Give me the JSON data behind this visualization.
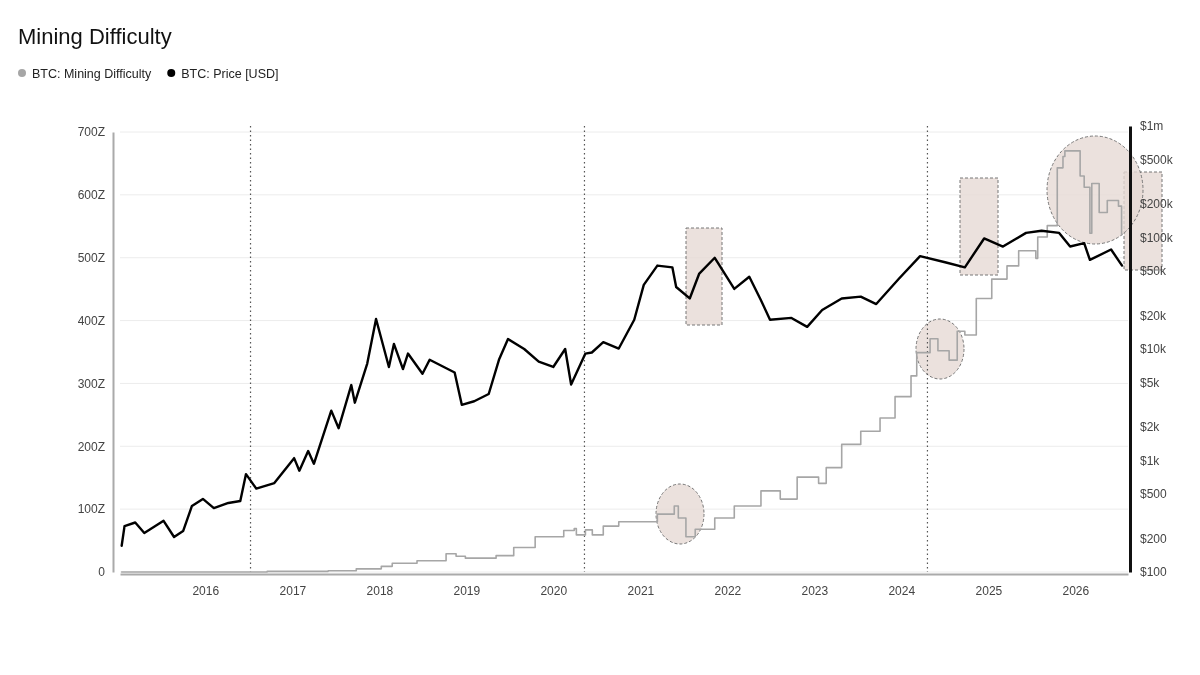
{
  "chart_data": {
    "type": "line",
    "title": "Mining Difficulty",
    "legend": "top left",
    "grid": "y",
    "log": "y2",
    "xlim": [
      "2015-01-08",
      "2026-08-10"
    ],
    "xticks": [
      {
        "value": "2016",
        "label": "2016"
      },
      {
        "value": "2017",
        "label": "2017"
      },
      {
        "value": "2018",
        "label": "2018"
      },
      {
        "value": "2019",
        "label": "2019"
      },
      {
        "value": "2020",
        "label": "2020"
      },
      {
        "value": "2021",
        "label": "2021"
      },
      {
        "value": "2022",
        "label": "2022"
      },
      {
        "value": "2023",
        "label": "2023"
      },
      {
        "value": "2024",
        "label": "2024"
      },
      {
        "value": "2025",
        "label": "2025"
      },
      {
        "value": "2026",
        "label": "2026"
      }
    ],
    "ylim": [
      0,
      700
    ],
    "yticks": [
      0,
      {
        "value": 100,
        "label": "100Z"
      },
      {
        "value": 200,
        "label": "200Z"
      },
      {
        "value": 300,
        "label": "300Z"
      },
      {
        "value": 400,
        "label": "400Z"
      },
      {
        "value": 500,
        "label": "500Z"
      },
      {
        "value": 600,
        "label": "600Z"
      },
      {
        "value": 700,
        "label": "700Z"
      }
    ],
    "y2lim": [
      100,
      1000000
    ],
    "y2ticks": [
      {
        "value": 100,
        "label": "$100"
      },
      {
        "value": 200,
        "label": "$200"
      },
      {
        "value": 500,
        "label": "$500"
      },
      {
        "value": 1000,
        "label": "$1k"
      },
      {
        "value": 2000,
        "label": "$2k"
      },
      {
        "value": 5000,
        "label": "$5k"
      },
      {
        "value": 10000,
        "label": "$10k"
      },
      {
        "value": 20000,
        "label": "$20k"
      },
      {
        "value": 50000,
        "label": "$50k"
      },
      {
        "value": 100000,
        "label": "$100k"
      },
      {
        "value": 200000,
        "label": "$200k"
      },
      {
        "value": 500000,
        "label": "$500k"
      },
      {
        "value": 1000000,
        "label": "$1m"
      }
    ],
    "ref_lines": [
      {
        "axis": "x",
        "value": "2016-07-09",
        "line_style": "dotted",
        "color": "#555555"
      },
      {
        "axis": "x",
        "value": "2020-05-11",
        "line_style": "dotted",
        "color": "#555555"
      },
      {
        "axis": "x",
        "value": "2024-04-20",
        "line_style": "dotted",
        "color": "#555555"
      }
    ],
    "series": [
      {
        "name": "BTC: Mining Difficulty",
        "type": "step",
        "color": "#a6a6a6",
        "x": [
          "2015-01-15",
          "2016-09-17",
          "2017-05-31",
          "2017-09-26",
          "2018-01-09",
          "2018-02-24",
          "2018-06-08",
          "2018-10-08",
          "2018-11-19",
          "2018-12-28",
          "2019-05-06",
          "2019-07-19",
          "2019-10-17",
          "2020-01-01",
          "2020-02-14",
          "2020-03-29",
          "2020-04-07",
          "2020-05-15",
          "2020-06-13",
          "2020-07-29",
          "2020-10-02",
          "2021-03-13",
          "2021-05-23",
          "2021-06-09",
          "2021-07-11",
          "2021-08-19",
          "2021-11-09",
          "2022-01-30",
          "2022-05-22",
          "2022-08-11",
          "2022-10-21",
          "2023-01-19",
          "2023-02-20",
          "2023-04-26",
          "2023-07-15",
          "2023-10-04",
          "2023-12-06",
          "2024-02-11",
          "2024-03-06",
          "2024-05-01",
          "2024-06-03",
          "2024-07-20",
          "2024-08-23",
          "2024-09-24",
          "2024-11-11",
          "2025-01-15",
          "2025-03-20",
          "2025-05-08",
          "2025-07-19",
          "2025-07-27",
          "2025-09-05",
          "2025-10-17",
          "2025-11-10",
          "2025-11-18",
          "2026-01-21",
          "2026-02-07",
          "2026-03-03",
          "2026-03-11",
          "2026-04-11",
          "2026-05-15",
          "2026-07-01",
          "2026-07-14"
        ],
        "values": [
          0,
          1,
          2,
          5,
          9,
          14,
          18,
          29,
          25,
          22,
          26,
          39,
          56,
          56,
          66,
          69,
          59,
          67,
          59,
          73,
          80,
          92,
          105,
          86,
          56,
          68,
          86,
          105,
          129,
          116,
          151,
          141,
          166,
          203,
          224,
          245,
          279,
          312,
          349,
          371,
          352,
          337,
          383,
          377,
          435,
          466,
          487,
          511,
          499,
          533,
          551,
          643,
          661,
          670,
          630,
          612,
          539,
          618,
          572,
          591,
          582,
          536
        ]
      },
      {
        "name": "BTC: Price [USD]",
        "type": "line",
        "axis": "y2",
        "color": "#000000",
        "x": [
          "2015-01-15",
          "2015-01-27",
          "2015-03-13",
          "2015-04-20",
          "2015-07-10",
          "2015-08-23",
          "2015-09-30",
          "2015-11-06",
          "2015-12-22",
          "2016-02-06",
          "2016-04-07",
          "2016-05-27",
          "2016-06-20",
          "2016-08-02",
          "2016-10-17",
          "2017-01-08",
          "2017-01-30",
          "2017-03-08",
          "2017-04-01",
          "2017-06-13",
          "2017-07-14",
          "2017-09-05",
          "2017-09-20",
          "2017-11-11",
          "2017-12-18",
          "2018-02-10",
          "2018-03-03",
          "2018-04-10",
          "2018-05-01",
          "2018-07-01",
          "2018-07-31",
          "2018-11-13",
          "2018-12-13",
          "2019-02-03",
          "2019-04-05",
          "2019-05-18",
          "2019-06-25",
          "2019-09-01",
          "2019-11-01",
          "2020-01-01",
          "2020-02-20",
          "2020-03-16",
          "2020-05-15",
          "2020-06-11",
          "2020-07-29",
          "2020-10-02",
          "2020-12-06",
          "2021-01-15",
          "2021-03-13",
          "2021-05-15",
          "2021-05-31",
          "2021-07-27",
          "2021-09-05",
          "2021-11-09",
          "2022-01-30",
          "2022-04-03",
          "2022-05-22",
          "2022-06-29",
          "2022-09-27",
          "2022-12-02",
          "2023-02-03",
          "2023-04-26",
          "2023-07-15",
          "2023-09-18",
          "2023-12-22",
          "2024-03-20",
          "2024-07-03",
          "2024-09-24",
          "2024-12-14",
          "2025-03-03",
          "2025-06-08",
          "2025-08-12",
          "2025-10-25",
          "2025-12-10",
          "2026-02-07",
          "2026-03-03",
          "2026-05-31",
          "2026-07-16"
        ],
        "values": [
          172,
          258,
          278,
          224,
          288,
          206,
          233,
          391,
          452,
          374,
          416,
          433,
          755,
          560,
          627,
          1050,
          810,
          1215,
          935,
          2800,
          1950,
          4750,
          3300,
          7400,
          18600,
          6900,
          11100,
          6600,
          9100,
          6000,
          8000,
          6150,
          3160,
          3400,
          3950,
          8000,
          12300,
          10000,
          7700,
          6900,
          10000,
          4800,
          9100,
          9300,
          11500,
          10100,
          18300,
          37600,
          56000,
          54000,
          36000,
          28400,
          47500,
          65800,
          34600,
          44500,
          27400,
          18300,
          19000,
          15800,
          22400,
          28400,
          29500,
          25300,
          42600,
          68000,
          60000,
          54000,
          98000,
          83000,
          110000,
          115000,
          110000,
          83000,
          89000,
          63000,
          78000,
          56000
        ]
      }
    ]
  }
}
